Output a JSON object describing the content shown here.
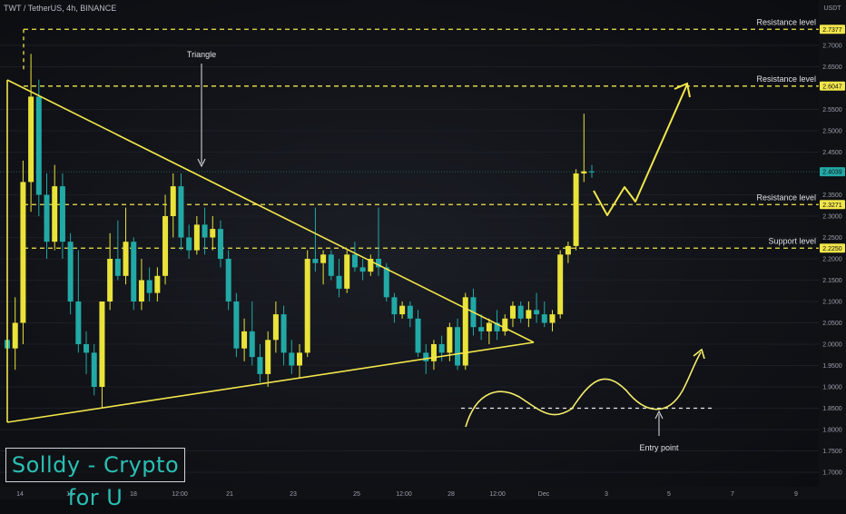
{
  "header": {
    "ticker": "TWT / TetherUS, 4h, BINANCE"
  },
  "brand": {
    "label": "Solldy - Crypto for U"
  },
  "colors": {
    "up": "#e9e33a",
    "down": "#22a9a6",
    "annotation": "#f2e64b",
    "grid": "#1b1e25",
    "axis_text": "#9ba0a8"
  },
  "chart_data": {
    "type": "candlestick",
    "y_unit": "USDT",
    "ylim": [
      1.68,
      2.78
    ],
    "y_ticks": [
      "2.7000",
      "2.6500",
      "2.5500",
      "2.5000",
      "2.4500",
      "2.3500",
      "2.3000",
      "2.2500",
      "2.2000",
      "2.1500",
      "2.1000",
      "2.0500",
      "2.0000",
      "1.9500",
      "1.9000",
      "1.8500",
      "1.8000",
      "1.7500",
      "1.7000"
    ],
    "x_ticks": [
      "14",
      "16",
      "18",
      "12:00",
      "21",
      "23",
      "25",
      "12:00",
      "28",
      "12:00",
      "Dec",
      "3",
      "5",
      "7",
      "9"
    ],
    "price_labels": [
      "2.7377",
      "2.6047",
      "2.4039",
      "2.3271",
      "2.2250"
    ],
    "levels": [
      {
        "price": 2.7377,
        "label": "Resistance level"
      },
      {
        "price": 2.6047,
        "label": "Resistance level"
      },
      {
        "price": 2.3271,
        "label": "Resistance level"
      },
      {
        "price": 2.225,
        "label": "Support level"
      }
    ],
    "entry_level": 1.85,
    "current_price": 2.4039,
    "annotations": {
      "triangle": "Triangle",
      "entry": "Entry point"
    },
    "candles": [
      [
        2.01,
        2.02,
        1.98,
        1.99
      ],
      [
        1.99,
        2.11,
        1.94,
        2.05
      ],
      [
        2.05,
        2.43,
        2.0,
        2.38
      ],
      [
        2.38,
        2.68,
        2.31,
        2.58
      ],
      [
        2.58,
        2.62,
        2.3,
        2.35
      ],
      [
        2.35,
        2.4,
        2.2,
        2.24
      ],
      [
        2.24,
        2.42,
        2.22,
        2.37
      ],
      [
        2.37,
        2.4,
        2.2,
        2.24
      ],
      [
        2.24,
        2.26,
        2.07,
        2.1
      ],
      [
        2.1,
        2.22,
        1.98,
        2.0
      ],
      [
        2.0,
        2.03,
        1.93,
        1.98
      ],
      [
        1.98,
        2.0,
        1.88,
        1.9
      ],
      [
        1.9,
        2.1,
        1.85,
        2.1
      ],
      [
        2.1,
        2.26,
        2.08,
        2.2
      ],
      [
        2.2,
        2.29,
        2.15,
        2.16
      ],
      [
        2.16,
        2.32,
        2.14,
        2.24
      ],
      [
        2.24,
        2.25,
        2.08,
        2.1
      ],
      [
        2.1,
        2.2,
        2.08,
        2.15
      ],
      [
        2.15,
        2.18,
        2.1,
        2.12
      ],
      [
        2.12,
        2.18,
        2.1,
        2.16
      ],
      [
        2.16,
        2.35,
        2.14,
        2.3
      ],
      [
        2.3,
        2.4,
        2.25,
        2.37
      ],
      [
        2.37,
        2.4,
        2.22,
        2.25
      ],
      [
        2.25,
        2.28,
        2.2,
        2.22
      ],
      [
        2.22,
        2.3,
        2.21,
        2.28
      ],
      [
        2.28,
        2.32,
        2.21,
        2.25
      ],
      [
        2.25,
        2.3,
        2.22,
        2.27
      ],
      [
        2.27,
        2.29,
        2.18,
        2.2
      ],
      [
        2.2,
        2.22,
        2.08,
        2.1
      ],
      [
        2.1,
        2.12,
        1.97,
        1.99
      ],
      [
        1.99,
        2.06,
        1.96,
        2.03
      ],
      [
        2.03,
        2.1,
        1.95,
        1.97
      ],
      [
        1.97,
        2.0,
        1.91,
        1.93
      ],
      [
        1.93,
        2.03,
        1.9,
        2.01
      ],
      [
        2.01,
        2.1,
        1.98,
        2.07
      ],
      [
        2.07,
        2.09,
        1.95,
        1.98
      ],
      [
        1.98,
        2.01,
        1.93,
        1.95
      ],
      [
        1.95,
        2.0,
        1.92,
        1.98
      ],
      [
        1.98,
        2.22,
        1.97,
        2.2
      ],
      [
        2.2,
        2.32,
        2.17,
        2.19
      ],
      [
        2.19,
        2.22,
        2.14,
        2.21
      ],
      [
        2.21,
        2.22,
        2.15,
        2.16
      ],
      [
        2.16,
        2.2,
        2.11,
        2.13
      ],
      [
        2.13,
        2.22,
        2.12,
        2.21
      ],
      [
        2.21,
        2.24,
        2.17,
        2.18
      ],
      [
        2.18,
        2.2,
        2.15,
        2.17
      ],
      [
        2.17,
        2.21,
        2.16,
        2.2
      ],
      [
        2.2,
        2.32,
        2.16,
        2.18
      ],
      [
        2.18,
        2.19,
        2.1,
        2.11
      ],
      [
        2.11,
        2.12,
        2.05,
        2.07
      ],
      [
        2.07,
        2.1,
        2.06,
        2.09
      ],
      [
        2.09,
        2.1,
        2.04,
        2.06
      ],
      [
        2.06,
        2.08,
        1.97,
        1.98
      ],
      [
        1.98,
        2.0,
        1.93,
        1.96
      ],
      [
        1.96,
        2.01,
        1.94,
        2.0
      ],
      [
        2.0,
        2.02,
        1.96,
        1.98
      ],
      [
        1.98,
        2.05,
        1.96,
        2.04
      ],
      [
        2.04,
        2.06,
        1.94,
        1.95
      ],
      [
        1.95,
        2.12,
        1.94,
        2.11
      ],
      [
        2.11,
        2.13,
        2.02,
        2.04
      ],
      [
        2.04,
        2.07,
        2.01,
        2.03
      ],
      [
        2.03,
        2.06,
        2.0,
        2.05
      ],
      [
        2.05,
        2.08,
        2.01,
        2.03
      ],
      [
        2.03,
        2.07,
        2.02,
        2.06
      ],
      [
        2.06,
        2.1,
        2.04,
        2.09
      ],
      [
        2.09,
        2.1,
        2.05,
        2.06
      ],
      [
        2.06,
        2.1,
        2.04,
        2.08
      ],
      [
        2.08,
        2.12,
        2.05,
        2.07
      ],
      [
        2.07,
        2.1,
        2.04,
        2.05
      ],
      [
        2.05,
        2.08,
        2.03,
        2.07
      ],
      [
        2.07,
        2.22,
        2.06,
        2.21
      ],
      [
        2.21,
        2.24,
        2.19,
        2.23
      ],
      [
        2.23,
        2.41,
        2.22,
        2.4
      ],
      [
        2.4,
        2.54,
        2.38,
        2.405
      ],
      [
        2.405,
        2.42,
        2.39,
        2.404
      ]
    ]
  }
}
